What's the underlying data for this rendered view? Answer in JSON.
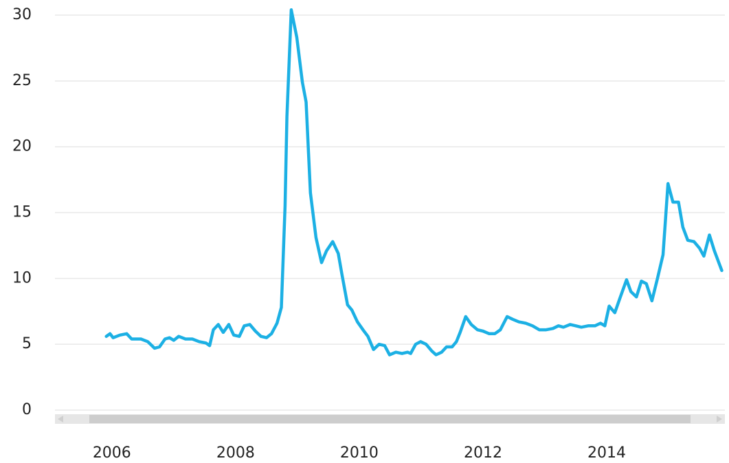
{
  "chart_data": {
    "type": "line",
    "color": "#1cb0e4",
    "grid": true,
    "xlim": [
      2005.08,
      2015.91
    ],
    "xticks": [
      2006,
      2008,
      2010,
      2012,
      2014
    ],
    "ylim": [
      0,
      30
    ],
    "yticks": [
      0,
      5,
      10,
      15,
      20,
      25,
      30
    ],
    "x": [
      2005.91,
      2005.97,
      2006.02,
      2006.13,
      2006.24,
      2006.32,
      2006.47,
      2006.58,
      2006.69,
      2006.77,
      2006.86,
      2006.93,
      2007.0,
      2007.08,
      2007.19,
      2007.3,
      2007.41,
      2007.52,
      2007.58,
      2007.64,
      2007.72,
      2007.8,
      2007.89,
      2007.97,
      2008.06,
      2008.14,
      2008.23,
      2008.32,
      2008.41,
      2008.5,
      2008.58,
      2008.67,
      2008.74,
      2008.8,
      2008.83,
      2008.9,
      2008.99,
      2009.08,
      2009.14,
      2009.21,
      2009.3,
      2009.39,
      2009.47,
      2009.57,
      2009.66,
      2009.72,
      2009.81,
      2009.88,
      2009.97,
      2010.06,
      2010.14,
      2010.23,
      2010.32,
      2010.41,
      2010.49,
      2010.59,
      2010.69,
      2010.78,
      2010.83,
      2010.91,
      2010.99,
      2011.08,
      2011.17,
      2011.24,
      2011.33,
      2011.41,
      2011.5,
      2011.57,
      2011.63,
      2011.72,
      2011.81,
      2011.91,
      2012.0,
      2012.1,
      2012.19,
      2012.28,
      2012.39,
      2012.48,
      2012.58,
      2012.69,
      2012.8,
      2012.91,
      2013.02,
      2013.13,
      2013.22,
      2013.3,
      2013.41,
      2013.5,
      2013.59,
      2013.7,
      2013.81,
      2013.9,
      2013.97,
      2014.04,
      2014.13,
      2014.22,
      2014.32,
      2014.39,
      2014.48,
      2014.56,
      2014.64,
      2014.73,
      2014.82,
      2014.91,
      2014.99,
      2015.07,
      2015.16,
      2015.23,
      2015.31,
      2015.41,
      2015.5,
      2015.57,
      2015.66,
      2015.74,
      2015.86
    ],
    "values": [
      5.6,
      5.8,
      5.5,
      5.7,
      5.8,
      5.4,
      5.4,
      5.2,
      4.7,
      4.8,
      5.4,
      5.5,
      5.3,
      5.6,
      5.4,
      5.4,
      5.2,
      5.1,
      4.9,
      6.1,
      6.5,
      5.9,
      6.5,
      5.7,
      5.6,
      6.4,
      6.5,
      6.0,
      5.6,
      5.5,
      5.8,
      6.6,
      7.8,
      15.5,
      22.3,
      30.4,
      28.3,
      24.9,
      23.4,
      16.5,
      13.1,
      11.2,
      12.1,
      12.8,
      11.9,
      10.3,
      8.0,
      7.6,
      6.7,
      6.1,
      5.6,
      4.6,
      5.0,
      4.9,
      4.2,
      4.4,
      4.3,
      4.4,
      4.3,
      5.0,
      5.2,
      5.0,
      4.5,
      4.2,
      4.4,
      4.8,
      4.8,
      5.2,
      5.9,
      7.1,
      6.5,
      6.1,
      6.0,
      5.8,
      5.8,
      6.1,
      7.1,
      6.9,
      6.7,
      6.6,
      6.4,
      6.1,
      6.1,
      6.2,
      6.4,
      6.3,
      6.5,
      6.4,
      6.3,
      6.4,
      6.4,
      6.6,
      6.4,
      7.9,
      7.4,
      8.6,
      9.9,
      9.0,
      8.6,
      9.8,
      9.6,
      8.3,
      10.0,
      11.8,
      17.2,
      15.8,
      15.8,
      13.9,
      12.9,
      12.8,
      12.3,
      11.7,
      13.3,
      12.1,
      10.6
    ]
  }
}
